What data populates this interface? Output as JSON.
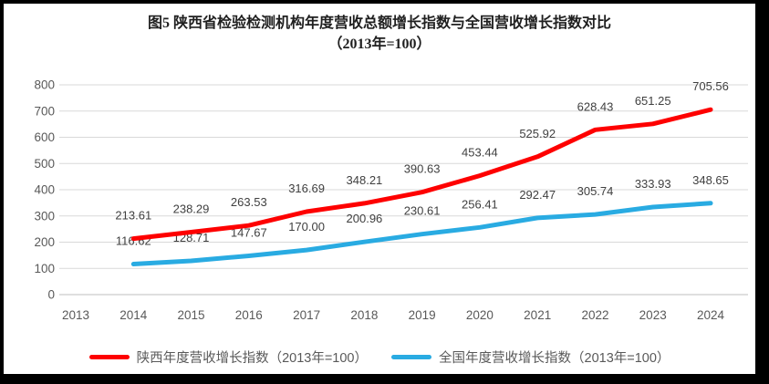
{
  "title": {
    "line1": "图5  陕西省检验检测机构年度营收总额增长指数与全国营收增长指数对比",
    "line2": "（2013年=100）"
  },
  "colors": {
    "shaanxi_line": "#FE0000",
    "national_line": "#29ABE2",
    "gridline": "#D9D9D9",
    "axis_line": "#BFBFBF",
    "tick_text": "#595959",
    "data_label_text": "#404040"
  },
  "chart_data": {
    "type": "line",
    "title": "图5 陕西省检验检测机构年度营收总额增长指数与全国营收增长指数对比（2013年=100）",
    "x": [
      "2013",
      "2014",
      "2015",
      "2016",
      "2017",
      "2018",
      "2019",
      "2020",
      "2021",
      "2022",
      "2023",
      "2024"
    ],
    "series": [
      {
        "name": "陕西年度营收增长指数（2013年=100）",
        "color": "#FE0000",
        "values": [
          null,
          213.61,
          238.29,
          263.53,
          316.69,
          348.21,
          390.63,
          453.44,
          525.92,
          628.43,
          651.25,
          705.56
        ]
      },
      {
        "name": "全国年度营收增长指数（2013年=100）",
        "color": "#29ABE2",
        "values": [
          null,
          116.62,
          128.71,
          147.67,
          170.0,
          200.96,
          230.61,
          256.41,
          292.47,
          305.74,
          333.93,
          348.65
        ]
      }
    ],
    "xlabel": "",
    "ylabel": "",
    "ylim": [
      0,
      800
    ],
    "ytick_step": 100,
    "grid": true,
    "legend_position": "bottom",
    "data_labels": true,
    "label_decimals": 2
  }
}
